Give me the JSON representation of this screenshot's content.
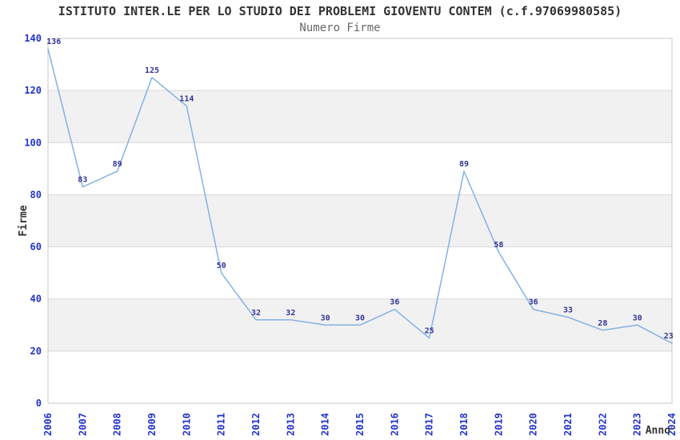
{
  "chart_data": {
    "type": "line",
    "title": "ISTITUTO INTER.LE PER LO STUDIO DEI PROBLEMI GIOVENTU CONTEM (c.f.97069980585)",
    "subtitle": "Numero Firme",
    "x": [
      "2006",
      "2007",
      "2008",
      "2009",
      "2010",
      "2011",
      "2012",
      "2013",
      "2014",
      "2015",
      "2016",
      "2017",
      "2018",
      "2019",
      "2020",
      "2021",
      "2022",
      "2023",
      "2024"
    ],
    "series": [
      {
        "name": "Numero Firme",
        "values": [
          136,
          83,
          89,
          125,
          114,
          50,
          32,
          32,
          30,
          30,
          36,
          25,
          89,
          58,
          36,
          33,
          28,
          30,
          23
        ]
      }
    ],
    "xlabel": "Anno",
    "ylabel": "Firme",
    "ylim": [
      0,
      140
    ],
    "yticks": [
      0,
      20,
      40,
      60,
      80,
      100,
      120,
      140
    ],
    "data_labels_shown": true,
    "legend_position": "none",
    "grid": true,
    "background_bands": "alternating horizontal bands, gray between 20-40, 60-80, 100-120"
  },
  "colors": {
    "line": "#84b2e4",
    "data_label": "#333399",
    "tick_label": "#2233cc",
    "title": "#333333",
    "subtitle": "#666666",
    "axis_title": "#333333",
    "band": "#f1f1f1",
    "gridline": "#d9d9d9",
    "border": "#c8c8c8",
    "background": "#ffffff"
  }
}
